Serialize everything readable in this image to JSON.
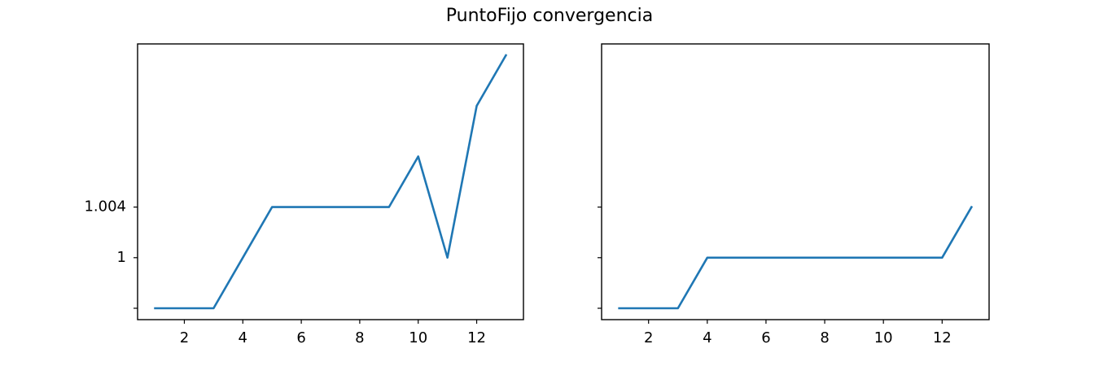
{
  "figure": {
    "title": "PuntoFijo convergencia"
  },
  "colors": {
    "series": "#1f77b4",
    "axes": "#000000",
    "background": "#ffffff"
  },
  "chart_data": [
    {
      "type": "line",
      "title": "",
      "xlabel": "",
      "ylabel": "",
      "grid": false,
      "x": [
        1,
        2,
        3,
        4,
        5,
        6,
        7,
        8,
        9,
        10,
        11,
        12,
        13
      ],
      "series": [
        {
          "values": [
            0.996,
            0.996,
            0.996,
            1.0,
            1.004,
            1.004,
            1.004,
            1.004,
            1.004,
            1.008,
            1.0,
            1.012,
            1.016
          ]
        }
      ],
      "xlim": [
        0.4,
        13.6
      ],
      "ylim": [
        0.9951,
        1.0169
      ],
      "xticks": [
        2,
        4,
        6,
        8,
        10,
        12
      ],
      "xtick_labels": [
        "2",
        "4",
        "6",
        "8",
        "10",
        "12"
      ],
      "yticks": [
        0.996,
        1.0,
        1.004
      ],
      "ytick_labels": [
        "",
        "1",
        "1.004"
      ]
    },
    {
      "type": "line",
      "title": "",
      "xlabel": "",
      "ylabel": "",
      "grid": false,
      "x": [
        1,
        2,
        3,
        4,
        5,
        6,
        7,
        8,
        9,
        10,
        11,
        12,
        13
      ],
      "series": [
        {
          "values": [
            0.996,
            0.996,
            0.996,
            1.0,
            1.0,
            1.0,
            1.0,
            1.0,
            1.0,
            1.0,
            1.0,
            1.0,
            1.004
          ]
        }
      ],
      "xlim": [
        0.4,
        13.6
      ],
      "ylim": [
        0.9951,
        1.0169
      ],
      "xticks": [
        2,
        4,
        6,
        8,
        10,
        12
      ],
      "xtick_labels": [
        "2",
        "4",
        "6",
        "8",
        "10",
        "12"
      ],
      "yticks": [
        0.996,
        1.0,
        1.004
      ],
      "ytick_labels": [
        "",
        "",
        ""
      ]
    }
  ]
}
